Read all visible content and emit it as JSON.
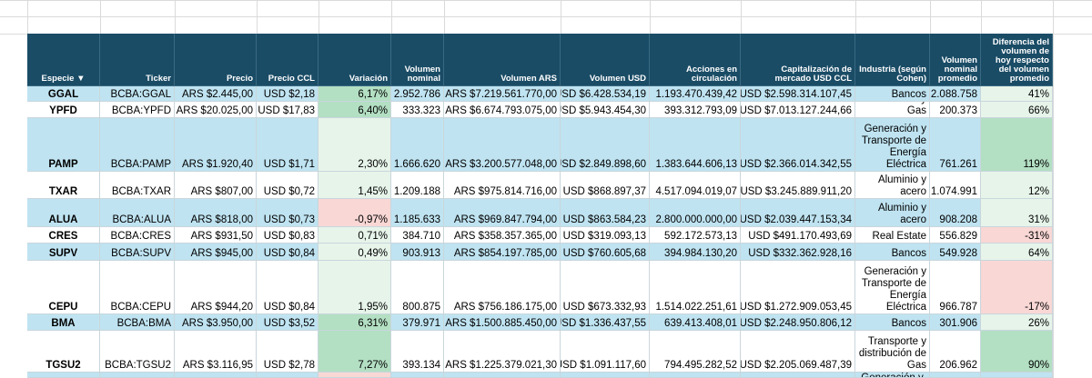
{
  "headers": {
    "especie": "Especie ▼",
    "ticker": "Ticker",
    "precio": "Precio",
    "precio_ccl": "Precio CCL",
    "variacion": "Variación",
    "vol_nominal": "Volumen nominal",
    "vol_ars": "Volumen ARS",
    "vol_usd": "Volumen USD",
    "acciones": "Acciones en circulación",
    "cap": "Capitalización de mercado USD CCL",
    "industria": "Industria (según Cohen)",
    "vol_nom_prom": "Volumen nominal promedio",
    "diferencia": "Diferencia del volumen de hoy respecto del volumen promedio"
  },
  "rows": [
    {
      "especie": "GGAL",
      "ticker": "BCBA:GGAL",
      "precio": "ARS $2.445,00",
      "ccl": "USD $2,18",
      "variacion": "6,17%",
      "vol_nom": "2.952.786",
      "vol_ars": "ARS $7.219.561.770,00",
      "vol_usd": "USD $6.428.534,19",
      "acciones": "1.193.470.439,42",
      "cap": "USD $2.598.314.107,45",
      "industria": "Bancos",
      "prom": "2.088.758",
      "dif": "41%"
    },
    {
      "especie": "YPFD",
      "ticker": "BCBA:YPFD",
      "precio": "ARS $20.025,00",
      "ccl": "USD $17,83",
      "variacion": "6,40%",
      "vol_nom": "333.323",
      "vol_ars": "ARS $6.674.793.075,00",
      "vol_usd": "USD $5.943.454,30",
      "acciones": "393.312.793,09",
      "cap": "USD $7.013.127.244,66",
      "industria": "Petróleo y Gas",
      "prom": "200.373",
      "dif": "66%"
    },
    {
      "especie": "PAMP",
      "ticker": "BCBA:PAMP",
      "precio": "ARS $1.920,40",
      "ccl": "USD $1,71",
      "variacion": "2,30%",
      "vol_nom": "1.666.620",
      "vol_ars": "ARS $3.200.577.048,00",
      "vol_usd": "USD $2.849.898,60",
      "acciones": "1.383.644.606,13",
      "cap": "USD $2.366.014.342,55",
      "industria": "Generación y Transporte de Energía Eléctrica",
      "prom": "761.261",
      "dif": "119%"
    },
    {
      "especie": "TXAR",
      "ticker": "BCBA:TXAR",
      "precio": "ARS $807,00",
      "ccl": "USD $0,72",
      "variacion": "1,45%",
      "vol_nom": "1.209.188",
      "vol_ars": "ARS $975.814.716,00",
      "vol_usd": "USD $868.897,37",
      "acciones": "4.517.094.019,07",
      "cap": "USD $3.245.889.911,20",
      "industria": "Aluminio y acero",
      "prom": "1.074.991",
      "dif": "12%"
    },
    {
      "especie": "ALUA",
      "ticker": "BCBA:ALUA",
      "precio": "ARS $818,00",
      "ccl": "USD $0,73",
      "variacion": "-0,97%",
      "vol_nom": "1.185.633",
      "vol_ars": "ARS $969.847.794,00",
      "vol_usd": "USD $863.584,23",
      "acciones": "2.800.000.000,00",
      "cap": "USD $2.039.447.153,34",
      "industria": "Aluminio y acero",
      "prom": "908.208",
      "dif": "31%"
    },
    {
      "especie": "CRES",
      "ticker": "BCBA:CRES",
      "precio": "ARS $931,50",
      "ccl": "USD $0,83",
      "variacion": "0,71%",
      "vol_nom": "384.710",
      "vol_ars": "ARS $358.357.365,00",
      "vol_usd": "USD $319.093,13",
      "acciones": "592.172.573,13",
      "cap": "USD $491.170.493,69",
      "industria": "Real Estate",
      "prom": "556.829",
      "dif": "-31%"
    },
    {
      "especie": "SUPV",
      "ticker": "BCBA:SUPV",
      "precio": "ARS $945,00",
      "ccl": "USD $0,84",
      "variacion": "0,49%",
      "vol_nom": "903.913",
      "vol_ars": "ARS $854.197.785,00",
      "vol_usd": "USD $760.605,68",
      "acciones": "394.984.130,20",
      "cap": "USD $332.362.928,16",
      "industria": "Bancos",
      "prom": "549.928",
      "dif": "64%"
    },
    {
      "especie": "CEPU",
      "ticker": "BCBA:CEPU",
      "precio": "ARS $944,20",
      "ccl": "USD $0,84",
      "variacion": "1,95%",
      "vol_nom": "800.875",
      "vol_ars": "ARS $756.186.175,00",
      "vol_usd": "USD $673.332,93",
      "acciones": "1.514.022.251,61",
      "cap": "USD $1.272.909.053,45",
      "industria": "Generación y Transporte de Energía Eléctrica",
      "prom": "966.787",
      "dif": "-17%"
    },
    {
      "especie": "BMA",
      "ticker": "BCBA:BMA",
      "precio": "ARS $3.950,00",
      "ccl": "USD $3,52",
      "variacion": "6,31%",
      "vol_nom": "379.971",
      "vol_ars": "ARS $1.500.885.450,00",
      "vol_usd": "USD $1.336.437,55",
      "acciones": "639.413.408,01",
      "cap": "USD $2.248.950.806,12",
      "industria": "Bancos",
      "prom": "301.906",
      "dif": "26%"
    },
    {
      "especie": "TGSU2",
      "ticker": "BCBA:TGSU2",
      "precio": "ARS $3.116,95",
      "ccl": "USD $2,78",
      "variacion": "7,27%",
      "vol_nom": "393.134",
      "vol_ars": "ARS $1.225.379.021,30",
      "vol_usd": "USD $1.091.117,60",
      "acciones": "794.495.282,52",
      "cap": "USD $2.205.069.487,39",
      "industria": "Transporte y distribución de Gas",
      "prom": "206.962",
      "dif": "90%"
    },
    {
      "especie": "",
      "ticker": "",
      "precio": "",
      "ccl": "",
      "variacion": "",
      "vol_nom": "",
      "vol_ars": "",
      "vol_usd": "",
      "acciones": "",
      "cap": "",
      "industria": "Generación y",
      "prom": "",
      "dif": ""
    }
  ],
  "colors": {
    "header_bg": "#1a4c66",
    "row_blue": "#bfe3f1",
    "positive_strong": "#b3dfc3",
    "positive_light": "#e6f4ea",
    "negative_light": "#f8d7d5",
    "grid": "#dadada"
  }
}
